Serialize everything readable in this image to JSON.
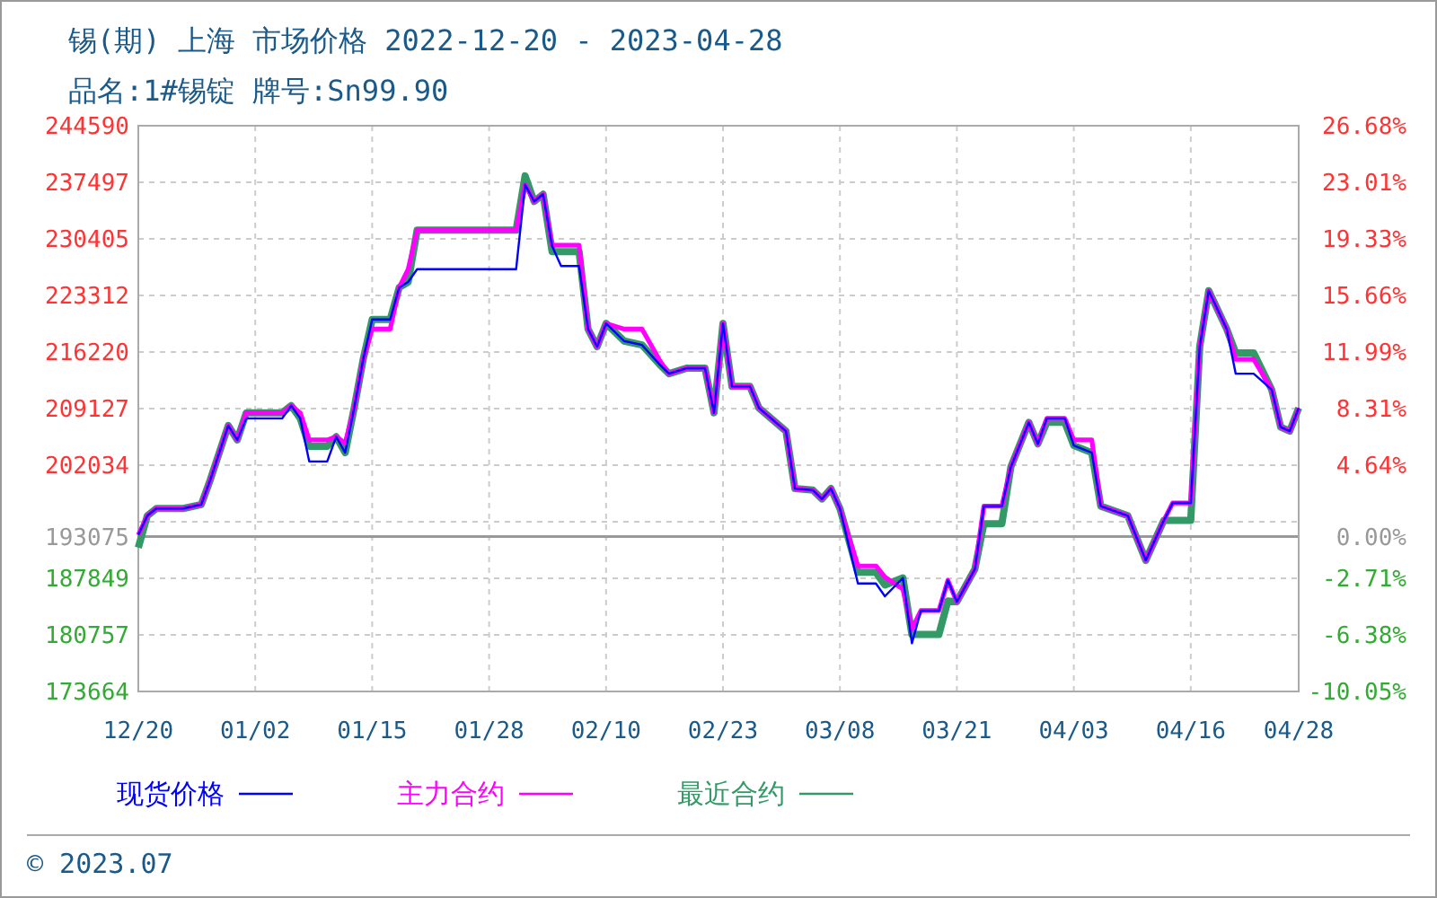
{
  "chart_data": {
    "type": "line",
    "title": "锡(期) 上海 市场价格 2022-12-20 - 2023-04-28",
    "subtitle": "品名:1#锡锭 牌号:Sn99.90",
    "annotations": [
      "© 2023.07"
    ],
    "x": [
      "2022-12-20",
      "2022-12-21",
      "2022-12-22",
      "2022-12-25",
      "2022-12-27",
      "2022-12-28",
      "2022-12-30",
      "2022-12-31",
      "2023-01-01",
      "2023-01-05",
      "2023-01-06",
      "2023-01-07",
      "2023-01-08",
      "2023-01-10",
      "2023-01-11",
      "2023-01-12",
      "2023-01-13",
      "2023-01-14",
      "2023-01-15",
      "2023-01-17",
      "2023-01-18",
      "2023-01-19",
      "2023-01-20",
      "2023-01-31",
      "2023-02-01",
      "2023-02-02",
      "2023-02-03",
      "2023-02-04",
      "2023-02-05",
      "2023-02-07",
      "2023-02-08",
      "2023-02-09",
      "2023-02-10",
      "2023-02-12",
      "2023-02-14",
      "2023-02-16",
      "2023-02-17",
      "2023-02-19",
      "2023-02-21",
      "2023-02-22",
      "2023-02-23",
      "2023-02-24",
      "2023-02-26",
      "2023-02-27",
      "2023-03-02",
      "2023-03-03",
      "2023-03-05",
      "2023-03-06",
      "2023-03-07",
      "2023-03-08",
      "2023-03-10",
      "2023-03-12",
      "2023-03-13",
      "2023-03-15",
      "2023-03-16",
      "2023-03-17",
      "2023-03-19",
      "2023-03-20",
      "2023-03-21",
      "2023-03-23",
      "2023-03-24",
      "2023-03-26",
      "2023-03-27",
      "2023-03-29",
      "2023-03-30",
      "2023-03-31",
      "2023-04-02",
      "2023-04-03",
      "2023-04-05",
      "2023-04-06",
      "2023-04-09",
      "2023-04-11",
      "2023-04-13",
      "2023-04-14",
      "2023-04-16",
      "2023-04-17",
      "2023-04-18",
      "2023-04-20",
      "2023-04-21",
      "2023-04-23",
      "2023-04-25",
      "2023-04-26",
      "2023-04-27",
      "2023-04-28"
    ],
    "series": [
      {
        "name": "现货价格",
        "color": "#0000ff",
        "values": [
          193300,
          195700,
          196600,
          196600,
          197100,
          200200,
          207000,
          205200,
          207900,
          207900,
          209500,
          207900,
          202500,
          202500,
          205600,
          203600,
          209200,
          215300,
          220300,
          220300,
          224300,
          225000,
          226600,
          226600,
          237200,
          235100,
          236000,
          229500,
          227000,
          227000,
          219100,
          216900,
          219800,
          217600,
          217100,
          214600,
          213500,
          214200,
          214200,
          208600,
          219800,
          211900,
          211900,
          209200,
          206300,
          199100,
          198900,
          197800,
          199100,
          196600,
          187200,
          187200,
          185600,
          187900,
          179700,
          183800,
          183800,
          187600,
          184900,
          189000,
          196900,
          196900,
          201800,
          207400,
          204700,
          207900,
          207900,
          204500,
          203600,
          196900,
          195700,
          190100,
          195100,
          197300,
          197300,
          216900,
          223900,
          219100,
          213500,
          213500,
          211500,
          206800,
          206300,
          209200
        ]
      },
      {
        "name": "主力合约",
        "color": "#ff00ff",
        "values": [
          193300,
          195700,
          196600,
          196600,
          197100,
          200200,
          207000,
          205200,
          208600,
          208600,
          209500,
          208600,
          205200,
          205200,
          205600,
          204800,
          209200,
          215300,
          219100,
          219100,
          224300,
          226600,
          231500,
          231500,
          237200,
          235100,
          236000,
          229600,
          229600,
          229600,
          219100,
          216900,
          219800,
          219100,
          219100,
          215100,
          213500,
          214200,
          214200,
          208600,
          219800,
          211900,
          211900,
          209200,
          206300,
          199100,
          198900,
          197800,
          199100,
          196600,
          189400,
          189400,
          188000,
          186500,
          181500,
          183800,
          183800,
          187600,
          184900,
          189000,
          196900,
          196900,
          201800,
          207400,
          204700,
          207900,
          207900,
          205200,
          205200,
          196900,
          195700,
          190100,
          195100,
          197300,
          197300,
          216900,
          223900,
          219100,
          215300,
          215300,
          211500,
          206800,
          206300,
          209200
        ]
      },
      {
        "name": "最近合约",
        "color": "#339966",
        "values": [
          191700,
          195700,
          196600,
          196600,
          197100,
          200200,
          207000,
          205200,
          208600,
          208600,
          209500,
          207900,
          204400,
          204400,
          205600,
          203600,
          209200,
          215300,
          220300,
          220300,
          224300,
          225000,
          231500,
          231500,
          238300,
          235100,
          236000,
          228800,
          228800,
          228800,
          219100,
          216900,
          219800,
          217600,
          217100,
          214600,
          213500,
          214200,
          214200,
          208600,
          219800,
          211900,
          211900,
          209200,
          206300,
          199100,
          198900,
          197800,
          199100,
          196600,
          188600,
          188600,
          187000,
          187900,
          180800,
          180800,
          180800,
          185000,
          184900,
          189000,
          194700,
          194700,
          201800,
          207400,
          204700,
          207400,
          207400,
          204500,
          203600,
          196900,
          195700,
          190100,
          195100,
          195100,
          195100,
          216900,
          223900,
          219100,
          216100,
          216100,
          211500,
          206800,
          206300,
          209200
        ]
      }
    ],
    "xlim": [
      "2022-12-20",
      "2023-04-28"
    ],
    "xticks": [
      {
        "value": "2022-12-20",
        "label": "12/20"
      },
      {
        "value": "2023-01-02",
        "label": "01/02"
      },
      {
        "value": "2023-01-15",
        "label": "01/15"
      },
      {
        "value": "2023-01-28",
        "label": "01/28"
      },
      {
        "value": "2023-02-10",
        "label": "02/10"
      },
      {
        "value": "2023-02-23",
        "label": "02/23"
      },
      {
        "value": "2023-03-08",
        "label": "03/08"
      },
      {
        "value": "2023-03-21",
        "label": "03/21"
      },
      {
        "value": "2023-04-03",
        "label": "04/03"
      },
      {
        "value": "2023-04-16",
        "label": "04/16"
      },
      {
        "value": "2023-04-28",
        "label": "04/28"
      }
    ],
    "ylim": [
      173664,
      244590
    ],
    "yticks": [
      244590,
      237497,
      230405,
      223312,
      216220,
      209127,
      202034,
      {
        "value": 194942,
        "label": null
      },
      193075,
      187849,
      180757,
      173664
    ],
    "y2lim": [
      -10.05,
      26.68
    ],
    "y2ticks": [
      {
        "value": 26.68,
        "label": "26.68%"
      },
      {
        "value": 23.01,
        "label": "23.01%"
      },
      {
        "value": 19.33,
        "label": "19.33%"
      },
      {
        "value": 15.66,
        "label": "15.66%"
      },
      {
        "value": 11.99,
        "label": "11.99%"
      },
      {
        "value": 8.31,
        "label": "8.31%"
      },
      {
        "value": 4.64,
        "label": "4.64%"
      },
      {
        "value": 0,
        "label": "0.00%"
      },
      {
        "value": -2.71,
        "label": "-2.71%"
      },
      {
        "value": -6.38,
        "label": "-6.38%"
      },
      {
        "value": -10.05,
        "label": "-10.05%"
      }
    ],
    "ref_lines": [
      {
        "axis": "y",
        "value": 193075,
        "color": "#999999"
      }
    ],
    "grid": true,
    "legend": "bottom",
    "marker": "none",
    "line_style": "solid"
  }
}
